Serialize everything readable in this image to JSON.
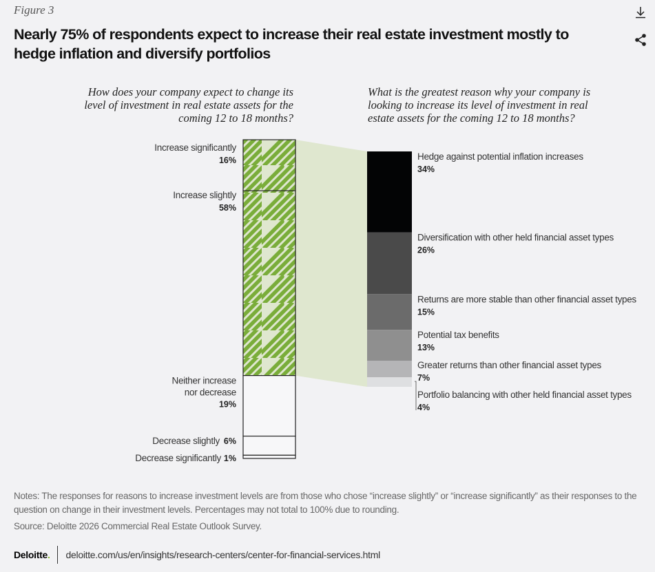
{
  "figure_label": "Figure 3",
  "title": "Nearly 75% of respondents expect to increase their real estate investment mostly to hedge inflation and diversify portfolios",
  "icons": {
    "download": "download-icon",
    "share": "share-icon"
  },
  "colors": {
    "accent_green": "#7aad3a",
    "green_bg": "#dfe7cf",
    "deloitte_green": "#86bc25"
  },
  "chart_data": [
    {
      "type": "bar",
      "orientation": "stacked-vertical",
      "title": "How does your company expect to change its level of investment in real estate assets for the coming 12 to 18 months?",
      "categories": [
        "Increase significantly",
        "Increase slightly",
        "Neither increase nor decrease",
        "Decrease slightly",
        "Decrease significantly"
      ],
      "values": [
        16,
        58,
        19,
        6,
        1
      ],
      "value_labels": [
        "16%",
        "58%",
        "19%",
        "6%",
        "1%"
      ],
      "highlighted": [
        "Increase significantly",
        "Increase slightly"
      ],
      "unit": "%"
    },
    {
      "type": "bar",
      "orientation": "stacked-vertical",
      "title": "What is the greatest reason why your company is looking to increase its level of investment in real estate assets for the coming 12 to 18 months?",
      "categories": [
        "Hedge against potential inflation increases",
        "Diversification with other held financial asset types",
        "Returns are more stable than other financial asset types",
        "Potential tax benefits",
        "Greater returns than other financial asset types",
        "Portfolio balancing with other held financial asset types"
      ],
      "values": [
        34,
        26,
        15,
        13,
        7,
        4
      ],
      "value_labels": [
        "34%",
        "26%",
        "15%",
        "13%",
        "7%",
        "4%"
      ],
      "segment_colors": [
        "#030405",
        "#4a4a4a",
        "#6b6b6b",
        "#8f8f8f",
        "#b5b5b7",
        "#dedfe1"
      ],
      "unit": "%"
    }
  ],
  "notes": "Notes: The responses for reasons to increase investment levels are from those who chose “increase slightly” or “increase significantly” as their responses to the question on change in their investment levels. Percentages may not total to 100% due to rounding.",
  "source": "Source: Deloitte 2026 Commercial Real Estate Outlook Survey.",
  "footer": {
    "brand": "Deloitte",
    "brand_dot": ".",
    "url": "deloitte.com/us/en/insights/research-centers/center-for-financial-services.html"
  }
}
